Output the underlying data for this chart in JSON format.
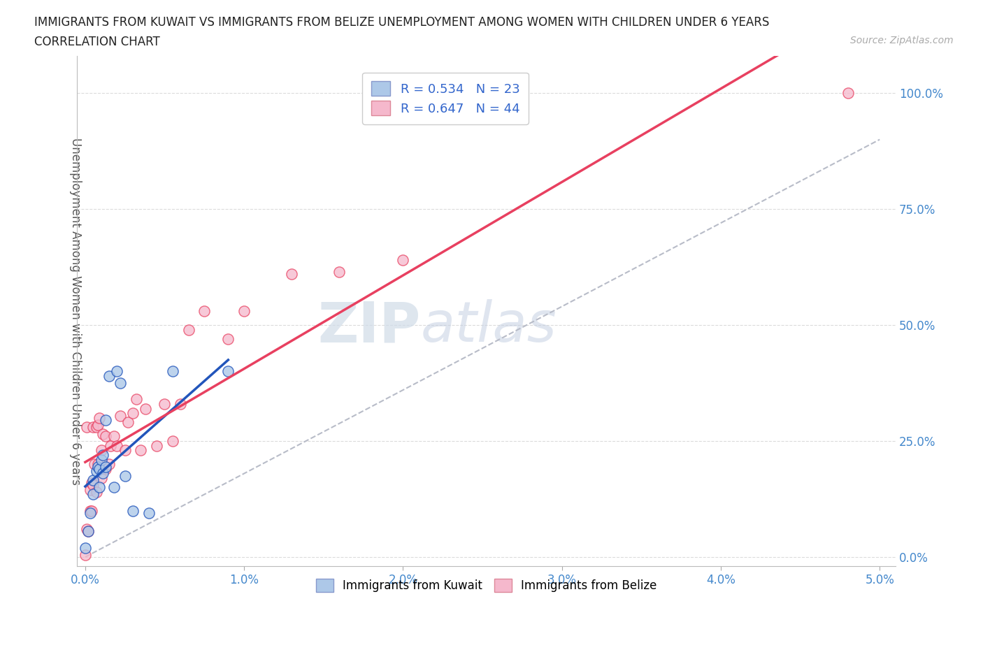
{
  "title_line1": "IMMIGRANTS FROM KUWAIT VS IMMIGRANTS FROM BELIZE UNEMPLOYMENT AMONG WOMEN WITH CHILDREN UNDER 6 YEARS",
  "title_line2": "CORRELATION CHART",
  "source_text": "Source: ZipAtlas.com",
  "xlabel": "",
  "ylabel": "Unemployment Among Women with Children Under 6 years",
  "xlim": [
    -0.0005,
    0.051
  ],
  "ylim": [
    -0.02,
    1.08
  ],
  "xticks": [
    0.0,
    0.01,
    0.02,
    0.03,
    0.04,
    0.05
  ],
  "xtick_labels": [
    "0.0%",
    "1.0%",
    "2.0%",
    "3.0%",
    "4.0%",
    "5.0%"
  ],
  "yticks": [
    0.0,
    0.25,
    0.5,
    0.75,
    1.0
  ],
  "ytick_labels": [
    "0.0%",
    "25.0%",
    "50.0%",
    "75.0%",
    "100.0%"
  ],
  "kuwait_R": 0.534,
  "kuwait_N": 23,
  "belize_R": 0.647,
  "belize_N": 44,
  "kuwait_color": "#adc8e8",
  "belize_color": "#f5b8cc",
  "kuwait_line_color": "#2255bb",
  "belize_line_color": "#e84060",
  "gray_dash_color": "#b8bcc8",
  "watermark_color": "#c8d8ec",
  "background_color": "#ffffff",
  "kuwait_x": [
    0.0,
    0.0002,
    0.0003,
    0.0005,
    0.0005,
    0.0007,
    0.0008,
    0.0009,
    0.0009,
    0.001,
    0.0011,
    0.0011,
    0.0013,
    0.0013,
    0.0015,
    0.0018,
    0.002,
    0.0022,
    0.0025,
    0.003,
    0.004,
    0.0055,
    0.009
  ],
  "kuwait_y": [
    0.02,
    0.055,
    0.095,
    0.135,
    0.165,
    0.185,
    0.195,
    0.15,
    0.19,
    0.21,
    0.18,
    0.22,
    0.195,
    0.295,
    0.39,
    0.15,
    0.4,
    0.375,
    0.175,
    0.1,
    0.095,
    0.4,
    0.4
  ],
  "belize_x": [
    0.0,
    0.0001,
    0.0001,
    0.0002,
    0.0003,
    0.0003,
    0.0004,
    0.0004,
    0.0005,
    0.0005,
    0.0006,
    0.0007,
    0.0007,
    0.0008,
    0.0008,
    0.0009,
    0.001,
    0.001,
    0.0011,
    0.0013,
    0.0013,
    0.0015,
    0.0016,
    0.0018,
    0.002,
    0.0022,
    0.0025,
    0.0027,
    0.003,
    0.0032,
    0.0035,
    0.0038,
    0.0045,
    0.005,
    0.0055,
    0.006,
    0.0065,
    0.0075,
    0.009,
    0.01,
    0.013,
    0.016,
    0.02,
    0.048
  ],
  "belize_y": [
    0.005,
    0.06,
    0.28,
    0.055,
    0.1,
    0.145,
    0.1,
    0.16,
    0.155,
    0.28,
    0.2,
    0.14,
    0.28,
    0.2,
    0.285,
    0.3,
    0.17,
    0.23,
    0.265,
    0.19,
    0.26,
    0.2,
    0.24,
    0.26,
    0.24,
    0.305,
    0.23,
    0.29,
    0.31,
    0.34,
    0.23,
    0.32,
    0.24,
    0.33,
    0.25,
    0.33,
    0.49,
    0.53,
    0.47,
    0.53,
    0.61,
    0.615,
    0.64,
    1.0
  ]
}
